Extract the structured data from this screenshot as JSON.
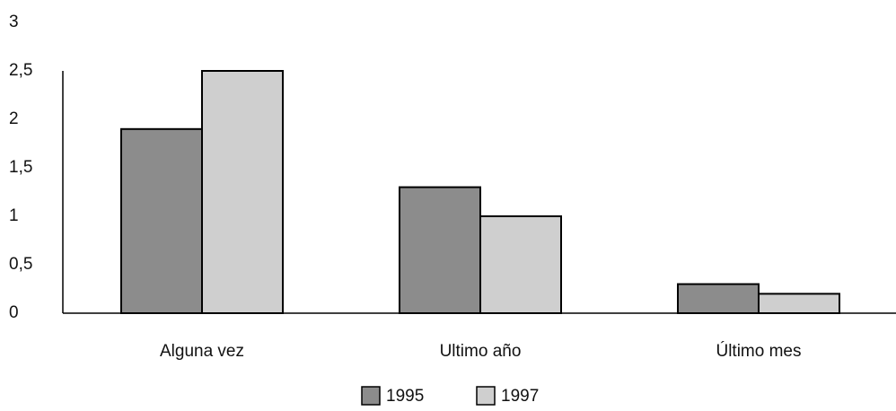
{
  "chart_data": {
    "type": "bar",
    "categories": [
      "Alguna vez",
      "Ultimo año",
      "Último mes"
    ],
    "series": [
      {
        "name": "1995",
        "color": "#8c8c8c",
        "values": [
          1.9,
          1.3,
          0.3
        ]
      },
      {
        "name": "1997",
        "color": "#cfcfcf",
        "values": [
          2.5,
          1.0,
          0.2
        ]
      }
    ],
    "ylim": [
      0,
      3
    ],
    "yticks": [
      0,
      {
        "value": 0.5,
        "label": "0,5"
      },
      1,
      {
        "value": 1.5,
        "label": "1,5"
      },
      2,
      {
        "value": 2.5,
        "label": "2,5"
      },
      3
    ],
    "grid": false,
    "legend": "bottom"
  }
}
